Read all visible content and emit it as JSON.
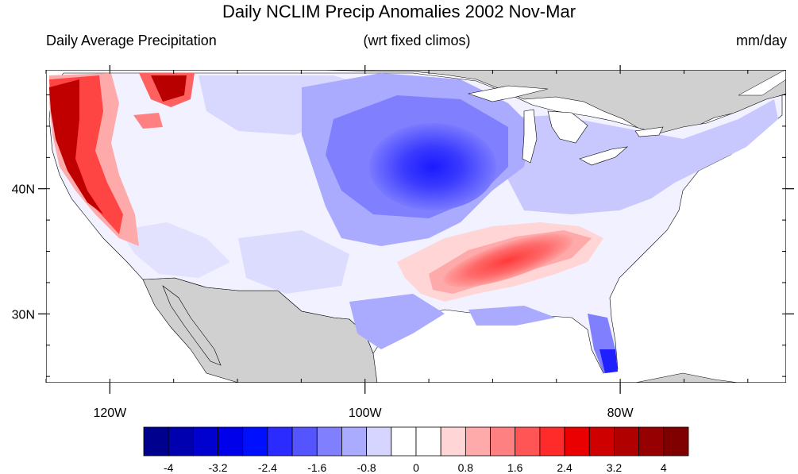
{
  "title": "Daily NCLIM Precip Anomalies 2002 Nov-Mar",
  "subtitle_left": "Daily Average Precipitation",
  "subtitle_center": "(wrt fixed climos)",
  "subtitle_right": "mm/day",
  "map": {
    "lon_range": [
      -125,
      -67
    ],
    "lat_range": [
      24.5,
      49.5
    ],
    "lon_ticks": [
      {
        "lon": -120,
        "label": "120W"
      },
      {
        "lon": -100,
        "label": "100W"
      },
      {
        "lon": -80,
        "label": "80W"
      }
    ],
    "lat_ticks": [
      {
        "lat": 40,
        "label": "40N"
      },
      {
        "lat": 30,
        "label": "30N"
      }
    ]
  },
  "colorbar": {
    "colors": [
      "#00008f",
      "#0000b0",
      "#0000cf",
      "#0000ea",
      "#0010ff",
      "#2b2bff",
      "#5555ff",
      "#8080ff",
      "#aaaaff",
      "#d5d5ff",
      "#ffffff",
      "#ffffff",
      "#ffd5d5",
      "#ffaaaa",
      "#ff8080",
      "#ff5555",
      "#ff2b2b",
      "#ea0000",
      "#cf0000",
      "#b00000",
      "#960000",
      "#800000"
    ],
    "labels": [
      "-4",
      "-3.2",
      "-2.4",
      "-1.6",
      "-0.8",
      "0",
      "0.8",
      "1.6",
      "2.4",
      "3.2",
      "4"
    ]
  }
}
